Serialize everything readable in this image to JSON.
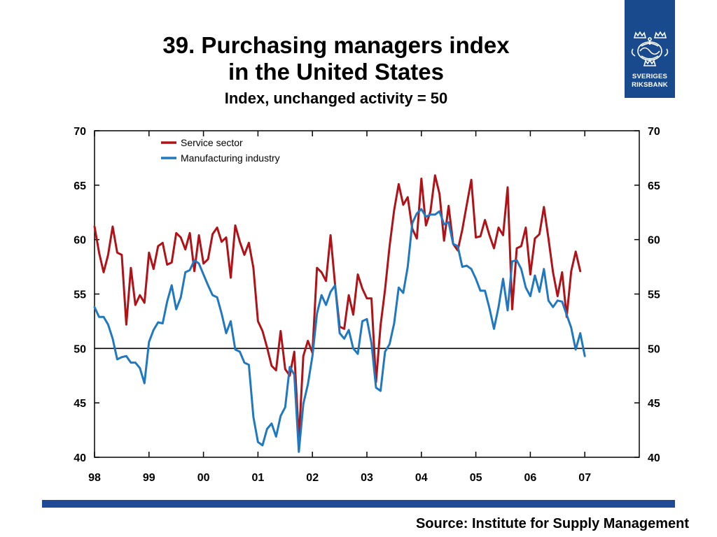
{
  "title": {
    "line1": "39. Purchasing managers index",
    "line2": "in the United States",
    "subtitle": "Index, unchanged activity = 50"
  },
  "logo": {
    "text_line1": "SVERIGES",
    "text_line2": "RIKSBANK",
    "background_color": "#1a4a8e",
    "icon": "crown-emblem-icon"
  },
  "source": "Source: Institute for Supply Management",
  "colors": {
    "service": "#b01217",
    "manufacturing": "#1f78c0",
    "bottom_bar": "#1f4b96"
  },
  "chart_data": {
    "type": "line",
    "xlim": [
      1998,
      2008
    ],
    "ylim": [
      40,
      70
    ],
    "y_ticks": [
      40,
      45,
      50,
      55,
      60,
      65,
      70
    ],
    "x_tick_labels": [
      "98",
      "99",
      "00",
      "01",
      "02",
      "03",
      "04",
      "05",
      "06",
      "07"
    ],
    "x_tick_positions": [
      1998,
      1999,
      2000,
      2001,
      2002,
      2003,
      2004,
      2005,
      2006,
      2007
    ],
    "reference_line": 50,
    "legend_position": "top-left",
    "grid": false,
    "series": [
      {
        "name": "Service sector",
        "color": "#b01217",
        "x": [
          1998.0,
          1998.083,
          1998.167,
          1998.25,
          1998.333,
          1998.417,
          1998.5,
          1998.583,
          1998.667,
          1998.75,
          1998.833,
          1998.917,
          1999.0,
          1999.083,
          1999.167,
          1999.25,
          1999.333,
          1999.417,
          1999.5,
          1999.583,
          1999.667,
          1999.75,
          1999.833,
          1999.917,
          2000.0,
          2000.083,
          2000.167,
          2000.25,
          2000.333,
          2000.417,
          2000.5,
          2000.583,
          2000.667,
          2000.75,
          2000.833,
          2000.917,
          2001.0,
          2001.083,
          2001.167,
          2001.25,
          2001.333,
          2001.417,
          2001.5,
          2001.583,
          2001.667,
          2001.75,
          2001.833,
          2001.917,
          2002.0,
          2002.083,
          2002.167,
          2002.25,
          2002.333,
          2002.417,
          2002.5,
          2002.583,
          2002.667,
          2002.75,
          2002.833,
          2002.917,
          2003.0,
          2003.083,
          2003.167,
          2003.25,
          2003.333,
          2003.417,
          2003.5,
          2003.583,
          2003.667,
          2003.75,
          2003.833,
          2003.917,
          2004.0,
          2004.083,
          2004.167,
          2004.25,
          2004.333,
          2004.417,
          2004.5,
          2004.583,
          2004.667,
          2004.75,
          2004.833,
          2004.917,
          2005.0,
          2005.083,
          2005.167,
          2005.25,
          2005.333,
          2005.417,
          2005.5,
          2005.583,
          2005.667,
          2005.75,
          2005.833,
          2005.917,
          2006.0,
          2006.083,
          2006.167,
          2006.25,
          2006.333,
          2006.417,
          2006.5,
          2006.583,
          2006.667,
          2006.75,
          2006.833,
          2006.917
        ],
        "values": [
          61.2,
          58.8,
          57.0,
          58.6,
          61.2,
          58.8,
          58.6,
          52.2,
          57.4,
          54.0,
          54.9,
          54.2,
          58.8,
          57.3,
          59.4,
          59.7,
          57.7,
          57.9,
          60.6,
          60.2,
          59.1,
          60.6,
          57.1,
          60.4,
          57.8,
          58.2,
          60.5,
          61.1,
          59.8,
          60.2,
          56.5,
          61.3,
          59.8,
          58.6,
          59.7,
          57.4,
          52.5,
          51.6,
          50.1,
          48.4,
          48.0,
          51.6,
          48.1,
          47.5,
          49.7,
          41.6,
          49.3,
          50.7,
          49.6,
          57.4,
          57.0,
          56.2,
          60.4,
          55.8,
          52.0,
          51.8,
          54.9,
          53.1,
          56.8,
          55.5,
          54.6,
          54.6,
          46.9,
          52.1,
          55.4,
          59.4,
          62.7,
          65.1,
          63.2,
          63.9,
          61.0,
          60.1,
          65.6,
          61.3,
          62.6,
          65.9,
          64.2,
          59.9,
          63.1,
          59.6,
          59.0,
          60.9,
          63.2,
          65.5,
          60.2,
          60.3,
          61.8,
          60.4,
          59.2,
          61.1,
          60.4,
          64.8,
          53.6,
          59.2,
          59.4,
          61.1,
          56.8,
          60.1,
          60.5,
          63.0,
          60.1,
          57.0,
          54.8,
          57.0,
          52.9,
          57.1,
          58.9,
          57.1
        ]
      },
      {
        "name": "Manufacturing industry",
        "color": "#1f78c0",
        "x": [
          1998.0,
          1998.083,
          1998.167,
          1998.25,
          1998.333,
          1998.417,
          1998.5,
          1998.583,
          1998.667,
          1998.75,
          1998.833,
          1998.917,
          1999.0,
          1999.083,
          1999.167,
          1999.25,
          1999.333,
          1999.417,
          1999.5,
          1999.583,
          1999.667,
          1999.75,
          1999.833,
          1999.917,
          2000.0,
          2000.083,
          2000.167,
          2000.25,
          2000.333,
          2000.417,
          2000.5,
          2000.583,
          2000.667,
          2000.75,
          2000.833,
          2000.917,
          2001.0,
          2001.083,
          2001.167,
          2001.25,
          2001.333,
          2001.417,
          2001.5,
          2001.583,
          2001.667,
          2001.75,
          2001.833,
          2001.917,
          2002.0,
          2002.083,
          2002.167,
          2002.25,
          2002.333,
          2002.417,
          2002.5,
          2002.583,
          2002.667,
          2002.75,
          2002.833,
          2002.917,
          2003.0,
          2003.083,
          2003.167,
          2003.25,
          2003.333,
          2003.417,
          2003.5,
          2003.583,
          2003.667,
          2003.75,
          2003.833,
          2003.917,
          2004.0,
          2004.083,
          2004.167,
          2004.25,
          2004.333,
          2004.417,
          2004.5,
          2004.583,
          2004.667,
          2004.75,
          2004.833,
          2004.917,
          2005.0,
          2005.083,
          2005.167,
          2005.25,
          2005.333,
          2005.417,
          2005.5,
          2005.583,
          2005.667,
          2005.75,
          2005.833,
          2005.917,
          2006.0,
          2006.083,
          2006.167,
          2006.25,
          2006.333,
          2006.417,
          2006.5,
          2006.583,
          2006.667,
          2006.75,
          2006.833,
          2006.917,
          2007.0
        ],
        "values": [
          53.8,
          52.9,
          52.9,
          52.2,
          50.9,
          49.0,
          49.2,
          49.3,
          48.7,
          48.7,
          48.2,
          46.8,
          50.6,
          51.7,
          52.4,
          52.3,
          54.3,
          55.8,
          53.6,
          54.7,
          57.0,
          57.2,
          58.1,
          57.8,
          56.8,
          55.8,
          54.9,
          54.7,
          53.2,
          51.4,
          52.5,
          49.9,
          49.7,
          48.7,
          48.5,
          43.7,
          41.4,
          41.1,
          42.6,
          43.1,
          41.9,
          43.8,
          44.6,
          48.3,
          47.6,
          40.5,
          44.9,
          46.7,
          49.3,
          53.2,
          54.9,
          54.0,
          55.2,
          55.8,
          51.4,
          50.9,
          51.7,
          50.0,
          49.5,
          52.5,
          52.7,
          50.5,
          46.4,
          46.1,
          49.7,
          50.4,
          52.3,
          55.6,
          55.1,
          57.5,
          61.5,
          62.4,
          62.8,
          62.1,
          62.3,
          62.3,
          62.6,
          61.4,
          61.6,
          59.6,
          59.4,
          57.5,
          57.6,
          57.3,
          56.4,
          55.3,
          55.3,
          53.7,
          51.8,
          53.8,
          56.4,
          53.5,
          58.0,
          58.1,
          57.3,
          55.6,
          54.8,
          56.7,
          55.2,
          57.3,
          54.4,
          53.8,
          54.4,
          54.3,
          53.1,
          51.9,
          49.9,
          51.4,
          49.3
        ]
      }
    ]
  }
}
